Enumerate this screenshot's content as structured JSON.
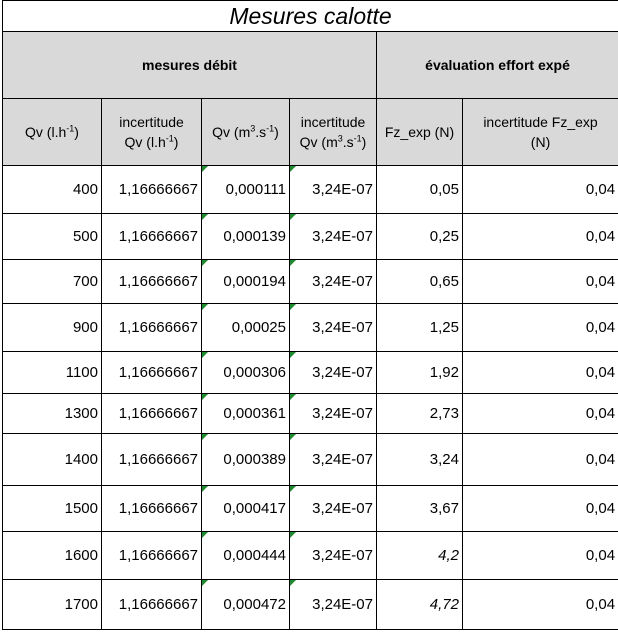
{
  "sheet": {
    "title": "Mesures calotte",
    "groups": {
      "left": "mesures débit",
      "right": "évaluation effort expé"
    },
    "headers": {
      "qv_lh": {
        "base": "Qv (l.h",
        "sup": "-1",
        "tail": ")"
      },
      "inc_qv_lh": {
        "line1": "incertitude",
        "base": "Qv (l.h",
        "sup": "-1",
        "tail": ")"
      },
      "qv_m3s": {
        "base": "Qv (m",
        "sup1": "3",
        "mid": ".s",
        "sup2": "-1",
        "tail": ")"
      },
      "inc_qv_m3s": {
        "line1": "incertitude",
        "base": "Qv (m",
        "sup1": "3",
        "mid": ".s",
        "sup2": "-1",
        "tail": ")"
      },
      "fz": "Fz_exp (N)",
      "inc_fz": {
        "line1": "incertitude Fz_exp",
        "line2": "(N)"
      }
    },
    "rows": [
      {
        "qv": "400",
        "inc": "1,16666667",
        "qvm": "0,000111",
        "incm": "3,24E-07",
        "fz": "0,05",
        "incfz": "0,04"
      },
      {
        "qv": "500",
        "inc": "1,16666667",
        "qvm": "0,000139",
        "incm": "3,24E-07",
        "fz": "0,25",
        "incfz": "0,04"
      },
      {
        "qv": "700",
        "inc": "1,16666667",
        "qvm": "0,000194",
        "incm": "3,24E-07",
        "fz": "0,65",
        "incfz": "0,04"
      },
      {
        "qv": "900",
        "inc": "1,16666667",
        "qvm": "0,00025",
        "incm": "3,24E-07",
        "fz": "1,25",
        "incfz": "0,04"
      },
      {
        "qv": "1100",
        "inc": "1,16666667",
        "qvm": "0,000306",
        "incm": "3,24E-07",
        "fz": "1,92",
        "incfz": "0,04"
      },
      {
        "qv": "1300",
        "inc": "1,16666667",
        "qvm": "0,000361",
        "incm": "3,24E-07",
        "fz": "2,73",
        "incfz": "0,04"
      },
      {
        "qv": "1400",
        "inc": "1,16666667",
        "qvm": "0,000389",
        "incm": "3,24E-07",
        "fz": "3,24",
        "incfz": "0,04"
      },
      {
        "qv": "1500",
        "inc": "1,16666667",
        "qvm": "0,000417",
        "incm": "3,24E-07",
        "fz": "3,67",
        "incfz": "0,04"
      },
      {
        "qv": "1600",
        "inc": "1,16666667",
        "qvm": "0,000444",
        "incm": "3,24E-07",
        "fz": "4,2",
        "incfz": "0,04",
        "fz_italic": true
      },
      {
        "qv": "1700",
        "inc": "1,16666667",
        "qvm": "0,000472",
        "incm": "3,24E-07",
        "fz": "4,72",
        "incfz": "0,04",
        "fz_italic": true
      }
    ],
    "colors": {
      "header_bg": "#d9d9d9",
      "grid": "#000000",
      "flag": "#1e8c2e"
    }
  }
}
